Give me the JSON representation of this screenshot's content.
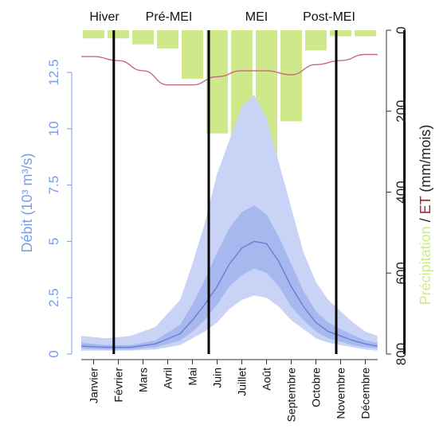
{
  "chart_data": {
    "type": "line",
    "seasons": [
      "Hiver",
      "Pré-MEI",
      "MEI",
      "Post-MEI"
    ],
    "season_boundaries_day": [
      40,
      157,
      314,
      398
    ],
    "months": [
      "Janvier",
      "Février",
      "Mars",
      "Avril",
      "Mai",
      "Juin",
      "Juillet",
      "Août",
      "Septembre",
      "Octobre",
      "Novembre",
      "Décembre"
    ],
    "ylabel_left": "Débit (10³ m³/s)",
    "ylim_left": [
      0,
      13.75
    ],
    "yticks_left": [
      "0",
      "2.5",
      "5",
      "7.5",
      "10",
      "12.5"
    ],
    "ylabel_right": {
      "precip_part": "Précipitation",
      "separator": " / ",
      "et_part": "ET",
      "unit": " (mm/mois)"
    },
    "ylim_right": [
      0,
      800
    ],
    "yticks_right": [
      "0",
      "200",
      "400",
      "600",
      "800"
    ],
    "precipitation_mm": [
      20,
      20,
      35,
      45,
      120,
      255,
      355,
      370,
      225,
      50,
      15,
      15
    ],
    "et_mm": [
      65,
      75,
      100,
      135,
      135,
      115,
      100,
      100,
      110,
      85,
      75,
      60
    ],
    "discharge_series": {
      "name": "Débit",
      "x_month": [
        0,
        1,
        2,
        3,
        4,
        4.5,
        5,
        5.5,
        6,
        6.5,
        7,
        7.5,
        8,
        8.5,
        9,
        9.5,
        10,
        10.5,
        11,
        11.5,
        11.99
      ],
      "median": [
        0.35,
        0.3,
        0.3,
        0.45,
        0.9,
        1.5,
        2.2,
        3.0,
        4.0,
        4.7,
        5.0,
        4.9,
        4.1,
        3.0,
        2.1,
        1.4,
        1.0,
        0.8,
        0.6,
        0.45,
        0.35
      ],
      "p25": [
        0.25,
        0.2,
        0.2,
        0.3,
        0.6,
        1.0,
        1.5,
        2.2,
        3.0,
        3.5,
        3.8,
        3.6,
        3.0,
        2.1,
        1.5,
        1.0,
        0.7,
        0.55,
        0.4,
        0.3,
        0.25
      ],
      "p75": [
        0.5,
        0.4,
        0.4,
        0.6,
        1.3,
        2.2,
        3.3,
        4.5,
        5.6,
        6.3,
        6.6,
        6.2,
        5.2,
        4.0,
        2.8,
        1.9,
        1.4,
        1.1,
        0.85,
        0.6,
        0.5
      ],
      "min": [
        0.15,
        0.15,
        0.15,
        0.2,
        0.4,
        0.7,
        1.0,
        1.4,
        2.0,
        2.4,
        2.6,
        2.5,
        2.1,
        1.5,
        1.1,
        0.7,
        0.5,
        0.4,
        0.3,
        0.2,
        0.15
      ],
      "max": [
        0.8,
        0.7,
        0.8,
        1.2,
        2.4,
        4.0,
        5.8,
        8.0,
        9.5,
        11.0,
        11.5,
        10.5,
        8.5,
        6.5,
        4.5,
        3.2,
        2.4,
        1.9,
        1.4,
        1.0,
        0.8
      ]
    },
    "colors": {
      "precip_bar": "#cfe98a",
      "et_line": "#c86a7e",
      "discharge_line": "#6a7fd1",
      "discharge_band_inner": "#a7b8ef",
      "discharge_band_outer": "#c8d3f6",
      "left_axis": "#7a9ce8",
      "precip_label": "#cfe98a",
      "et_label": "#b02232",
      "boundary_line": "#000000"
    }
  }
}
